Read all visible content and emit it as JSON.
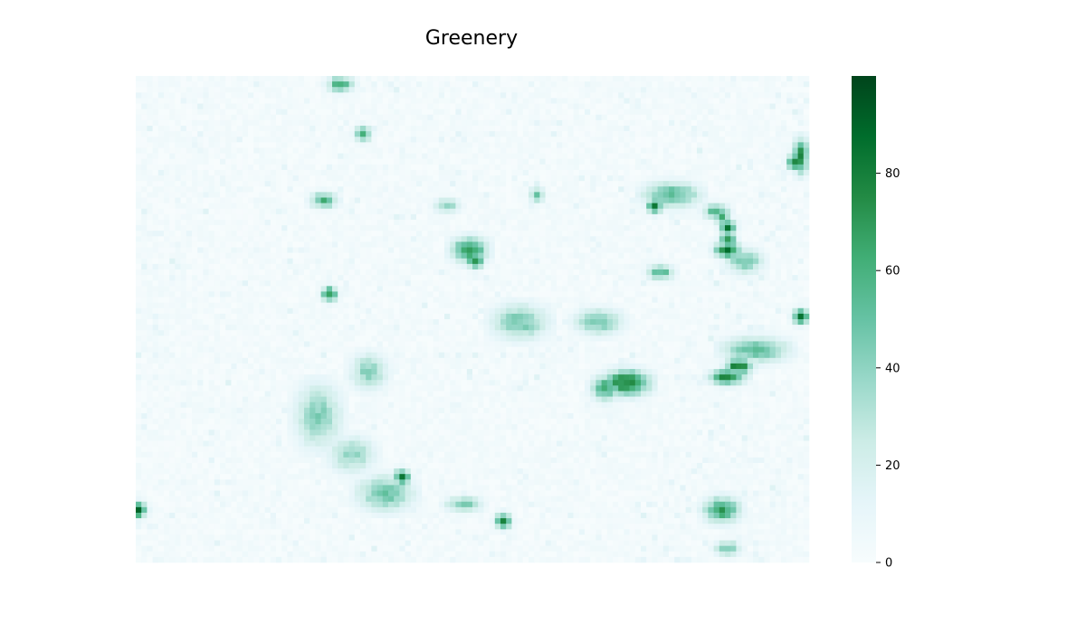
{
  "chart_data": {
    "type": "heatmap",
    "title": "Greenery",
    "xlabel": "",
    "ylabel": "",
    "rows": 88,
    "cols": 120,
    "value_range": [
      0,
      100
    ],
    "colormap": "BuGn",
    "colorbar": {
      "ticks": [
        0,
        20,
        40,
        60,
        80
      ],
      "tick_labels": [
        "0",
        "20",
        "40",
        "60",
        "80"
      ]
    },
    "axes_visible": false,
    "grid": false,
    "background_level": 6,
    "hotspots": [
      {
        "row": 1,
        "col": 36,
        "rx": 2,
        "ry": 1,
        "value": 70
      },
      {
        "row": 10,
        "col": 40,
        "rx": 1,
        "ry": 1,
        "value": 75
      },
      {
        "row": 14,
        "col": 118,
        "rx": 1,
        "ry": 3,
        "value": 80
      },
      {
        "row": 15,
        "col": 117,
        "rx": 1,
        "ry": 1,
        "value": 98
      },
      {
        "row": 21,
        "col": 71,
        "rx": 1,
        "ry": 1,
        "value": 55
      },
      {
        "row": 22,
        "col": 33,
        "rx": 2,
        "ry": 1,
        "value": 70
      },
      {
        "row": 23,
        "col": 55,
        "rx": 2,
        "ry": 1,
        "value": 45
      },
      {
        "row": 21,
        "col": 95,
        "rx": 5,
        "ry": 2,
        "value": 62
      },
      {
        "row": 23,
        "col": 92,
        "rx": 1,
        "ry": 1,
        "value": 88
      },
      {
        "row": 24,
        "col": 103,
        "rx": 2,
        "ry": 1,
        "value": 65
      },
      {
        "row": 25,
        "col": 104,
        "rx": 1,
        "ry": 1,
        "value": 70
      },
      {
        "row": 27,
        "col": 105,
        "rx": 1,
        "ry": 1,
        "value": 92
      },
      {
        "row": 29,
        "col": 105,
        "rx": 1,
        "ry": 1,
        "value": 92
      },
      {
        "row": 31,
        "col": 105,
        "rx": 2,
        "ry": 1,
        "value": 95
      },
      {
        "row": 31,
        "col": 59,
        "rx": 3,
        "ry": 2,
        "value": 78
      },
      {
        "row": 33,
        "col": 60,
        "rx": 1,
        "ry": 1,
        "value": 90
      },
      {
        "row": 35,
        "col": 93,
        "rx": 2,
        "ry": 1,
        "value": 65
      },
      {
        "row": 33,
        "col": 108,
        "rx": 3,
        "ry": 2,
        "value": 55
      },
      {
        "row": 39,
        "col": 34,
        "rx": 1,
        "ry": 1,
        "value": 85
      },
      {
        "row": 43,
        "col": 118,
        "rx": 1,
        "ry": 1,
        "value": 92
      },
      {
        "row": 44,
        "col": 68,
        "rx": 5,
        "ry": 3,
        "value": 52
      },
      {
        "row": 44,
        "col": 82,
        "rx": 4,
        "ry": 2,
        "value": 55
      },
      {
        "row": 49,
        "col": 110,
        "rx": 6,
        "ry": 2,
        "value": 60
      },
      {
        "row": 52,
        "col": 107,
        "rx": 2,
        "ry": 1,
        "value": 96
      },
      {
        "row": 54,
        "col": 105,
        "rx": 3,
        "ry": 1,
        "value": 85
      },
      {
        "row": 53,
        "col": 41,
        "rx": 3,
        "ry": 3,
        "value": 48
      },
      {
        "row": 55,
        "col": 87,
        "rx": 4,
        "ry": 2,
        "value": 92
      },
      {
        "row": 56,
        "col": 83,
        "rx": 2,
        "ry": 2,
        "value": 70
      },
      {
        "row": 61,
        "col": 32,
        "rx": 4,
        "ry": 6,
        "value": 48
      },
      {
        "row": 68,
        "col": 38,
        "rx": 4,
        "ry": 3,
        "value": 45
      },
      {
        "row": 72,
        "col": 47,
        "rx": 1,
        "ry": 1,
        "value": 88
      },
      {
        "row": 75,
        "col": 44,
        "rx": 5,
        "ry": 3,
        "value": 55
      },
      {
        "row": 77,
        "col": 58,
        "rx": 3,
        "ry": 1,
        "value": 55
      },
      {
        "row": 78,
        "col": 0,
        "rx": 1,
        "ry": 1,
        "value": 100
      },
      {
        "row": 78,
        "col": 104,
        "rx": 3,
        "ry": 2,
        "value": 75
      },
      {
        "row": 80,
        "col": 65,
        "rx": 1,
        "ry": 1,
        "value": 92
      },
      {
        "row": 85,
        "col": 105,
        "rx": 2,
        "ry": 1,
        "value": 55
      }
    ]
  }
}
